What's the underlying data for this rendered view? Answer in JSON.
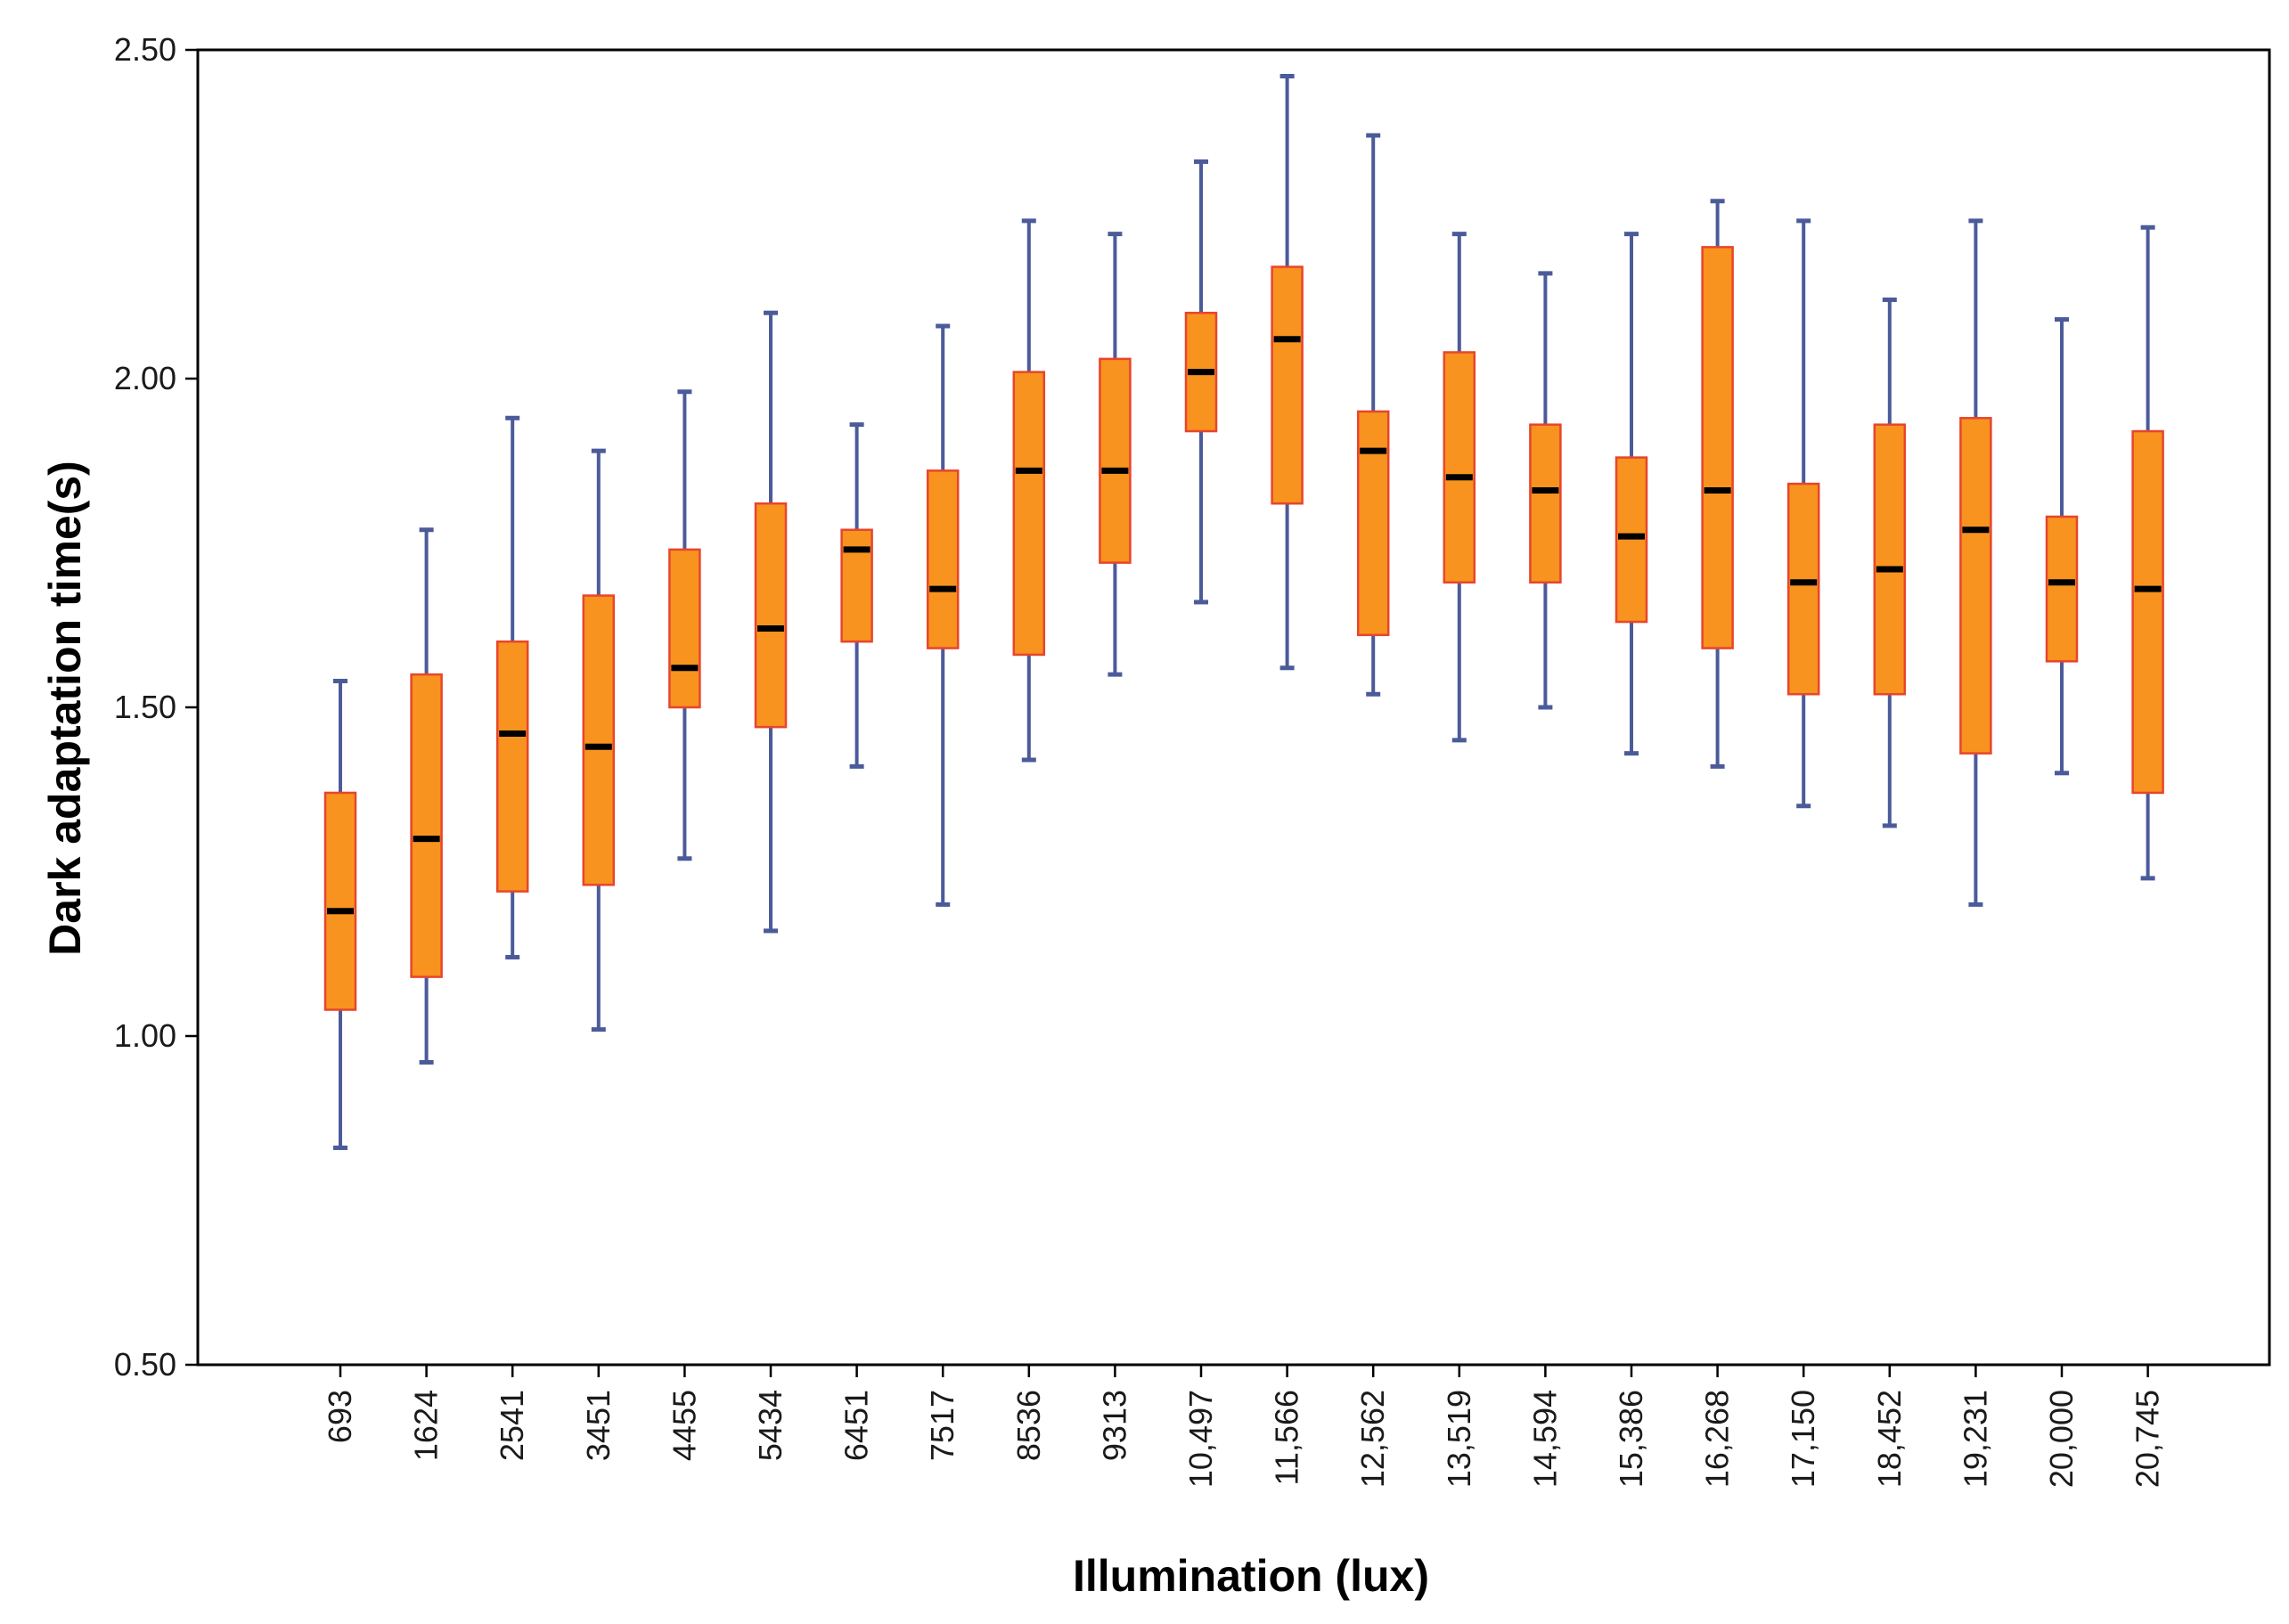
{
  "chart_data": {
    "type": "box",
    "title": "",
    "xlabel": "Illumination (lux)",
    "ylabel": "Dark adaptation time(s)",
    "ylim": [
      0.5,
      2.5
    ],
    "yticks": [
      "0.50",
      "1.00",
      "1.50",
      "2.00",
      "2.50"
    ],
    "categories": [
      "693",
      "1624",
      "2541",
      "3451",
      "4455",
      "5434",
      "6451",
      "7517",
      "8536",
      "9313",
      "10,497",
      "11,566",
      "12,562",
      "13,519",
      "14,594",
      "15,386",
      "16,268",
      "17,150",
      "18,452",
      "19,231",
      "20,000",
      "20,745"
    ],
    "series": [
      {
        "name": "Dark adaptation time",
        "boxes": [
          {
            "min": 0.83,
            "q1": 1.04,
            "median": 1.19,
            "q3": 1.37,
            "max": 1.54
          },
          {
            "min": 0.96,
            "q1": 1.09,
            "median": 1.3,
            "q3": 1.55,
            "max": 1.77
          },
          {
            "min": 1.12,
            "q1": 1.22,
            "median": 1.46,
            "q3": 1.6,
            "max": 1.94
          },
          {
            "min": 1.01,
            "q1": 1.23,
            "median": 1.44,
            "q3": 1.67,
            "max": 1.89
          },
          {
            "min": 1.27,
            "q1": 1.5,
            "median": 1.56,
            "q3": 1.74,
            "max": 1.98
          },
          {
            "min": 1.16,
            "q1": 1.47,
            "median": 1.62,
            "q3": 1.81,
            "max": 2.1
          },
          {
            "min": 1.41,
            "q1": 1.6,
            "median": 1.74,
            "q3": 1.77,
            "max": 1.93
          },
          {
            "min": 1.2,
            "q1": 1.59,
            "median": 1.68,
            "q3": 1.86,
            "max": 2.08
          },
          {
            "min": 1.42,
            "q1": 1.58,
            "median": 1.86,
            "q3": 2.01,
            "max": 2.24
          },
          {
            "min": 1.55,
            "q1": 1.72,
            "median": 1.86,
            "q3": 2.03,
            "max": 2.22
          },
          {
            "min": 1.66,
            "q1": 1.92,
            "median": 2.01,
            "q3": 2.1,
            "max": 2.33
          },
          {
            "min": 1.56,
            "q1": 1.81,
            "median": 2.06,
            "q3": 2.17,
            "max": 2.46
          },
          {
            "min": 1.52,
            "q1": 1.61,
            "median": 1.89,
            "q3": 1.95,
            "max": 2.37
          },
          {
            "min": 1.45,
            "q1": 1.69,
            "median": 1.85,
            "q3": 2.04,
            "max": 2.22
          },
          {
            "min": 1.5,
            "q1": 1.69,
            "median": 1.83,
            "q3": 1.93,
            "max": 2.16
          },
          {
            "min": 1.43,
            "q1": 1.63,
            "median": 1.76,
            "q3": 1.88,
            "max": 2.22
          },
          {
            "min": 1.41,
            "q1": 1.59,
            "median": 1.83,
            "q3": 2.2,
            "max": 2.27
          },
          {
            "min": 1.35,
            "q1": 1.52,
            "median": 1.69,
            "q3": 1.84,
            "max": 2.24
          },
          {
            "min": 1.32,
            "q1": 1.52,
            "median": 1.71,
            "q3": 1.93,
            "max": 2.12
          },
          {
            "min": 1.2,
            "q1": 1.43,
            "median": 1.77,
            "q3": 1.94,
            "max": 2.24
          },
          {
            "min": 1.4,
            "q1": 1.57,
            "median": 1.69,
            "q3": 1.79,
            "max": 2.09
          },
          {
            "min": 1.24,
            "q1": 1.37,
            "median": 1.68,
            "q3": 1.92,
            "max": 2.23
          }
        ]
      }
    ],
    "grid": false,
    "legend": "none",
    "colors": {
      "box_fill": "#f7931e",
      "box_edge": "#e8452c",
      "whisker": "#4b5b9a",
      "median": "#000000",
      "frame": "#000000"
    }
  }
}
